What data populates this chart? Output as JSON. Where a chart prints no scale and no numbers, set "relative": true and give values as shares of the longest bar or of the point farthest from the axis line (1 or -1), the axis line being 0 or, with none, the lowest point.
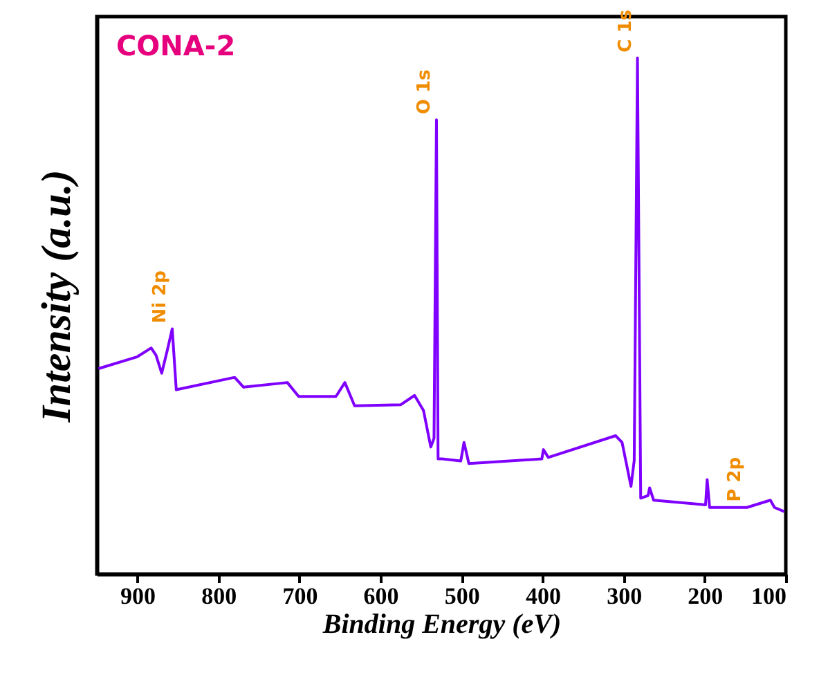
{
  "chart_data": {
    "type": "line",
    "title": "CONA-2",
    "xlabel": "Binding Energy (eV)",
    "ylabel": "Intensity (a.u.)",
    "relative": true,
    "tick_labels": "x",
    "grid": false,
    "marker": "none",
    "line_style": "solid",
    "xlim": [
      950,
      100
    ],
    "xticks": [
      900,
      800,
      700,
      600,
      500,
      400,
      300,
      200,
      100
    ],
    "annotations": [
      {
        "text": "Ni 2p",
        "x": 857,
        "y": 0.475
      },
      {
        "text": "O 1s",
        "x": 531,
        "y": 0.88
      },
      {
        "text": "C 1s",
        "x": 283,
        "y": 1.0
      },
      {
        "text": "P 2p",
        "x": 148,
        "y": 0.129
      }
    ],
    "series": [
      {
        "color": "#7f00ff",
        "x": [
          948,
          900,
          883,
          877,
          870,
          863,
          857,
          852,
          780,
          769,
          715,
          701,
          655,
          644,
          632,
          575,
          558,
          547,
          538,
          534,
          531,
          529,
          524,
          501,
          497,
          491,
          401,
          399,
          393,
          310,
          302,
          291,
          287,
          283,
          279,
          270,
          268,
          263,
          199,
          197,
          194,
          148,
          119,
          114,
          102
        ],
        "values": [
          0.398,
          0.421,
          0.438,
          0.424,
          0.389,
          0.434,
          0.475,
          0.357,
          0.381,
          0.362,
          0.371,
          0.344,
          0.344,
          0.371,
          0.326,
          0.328,
          0.346,
          0.317,
          0.246,
          0.263,
          0.88,
          0.223,
          0.223,
          0.219,
          0.255,
          0.214,
          0.223,
          0.241,
          0.226,
          0.268,
          0.255,
          0.17,
          0.22,
          1.0,
          0.147,
          0.152,
          0.167,
          0.143,
          0.134,
          0.183,
          0.129,
          0.129,
          0.143,
          0.129,
          0.121
        ]
      }
    ]
  }
}
